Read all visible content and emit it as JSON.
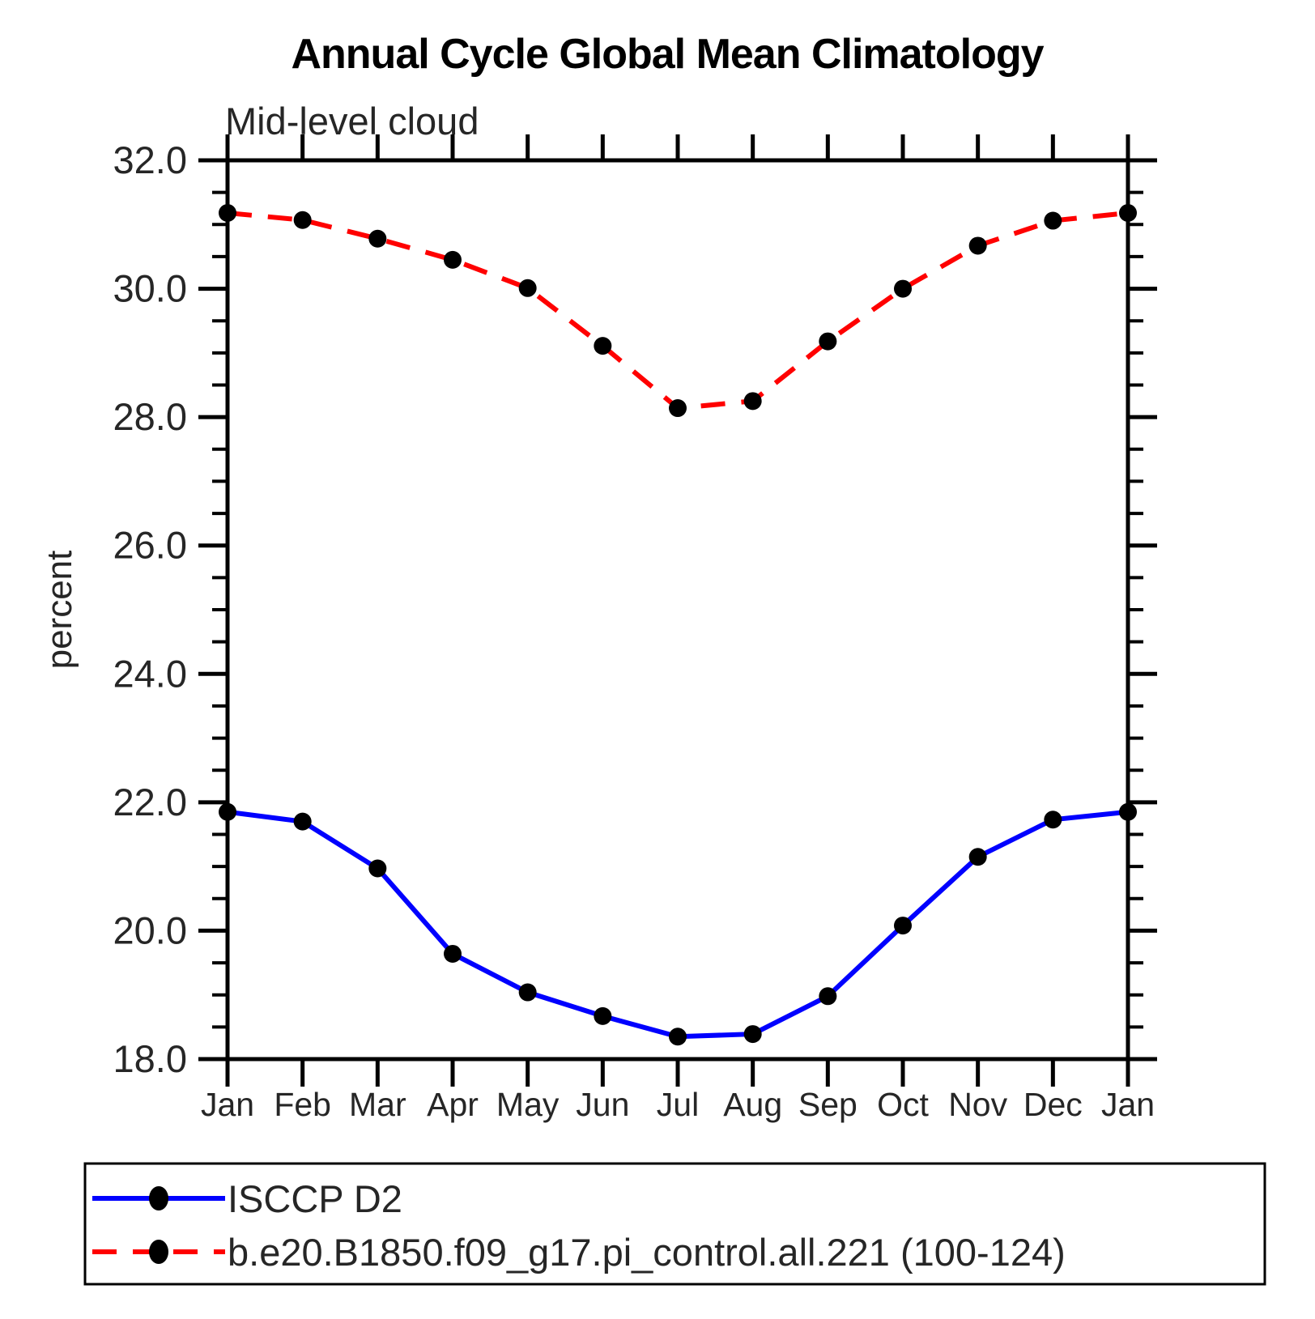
{
  "chart_data": {
    "type": "line",
    "title": "Annual Cycle Global Mean Climatology",
    "subtitle": "Mid-level cloud",
    "ylabel": "percent",
    "xlabel": "",
    "categories": [
      "Jan",
      "Feb",
      "Mar",
      "Apr",
      "May",
      "Jun",
      "Jul",
      "Aug",
      "Sep",
      "Oct",
      "Nov",
      "Dec",
      "Jan"
    ],
    "ylim": [
      18.0,
      32.0
    ],
    "ytick_step": 2.0,
    "ytick_minor_step": 0.5,
    "ytick_labels": [
      "18.0",
      "20.0",
      "22.0",
      "24.0",
      "26.0",
      "28.0",
      "30.0",
      "32.0"
    ],
    "grid": false,
    "legend_position": "bottom",
    "marker": "filled-circle",
    "marker_color": "#000000",
    "series": [
      {
        "name": "ISCCP D2",
        "color": "#0000ff",
        "line_style": "solid",
        "values": [
          21.85,
          21.7,
          20.97,
          19.64,
          19.04,
          18.67,
          18.35,
          18.39,
          18.98,
          20.08,
          21.15,
          21.73,
          21.85
        ]
      },
      {
        "name": "b.e20.B1850.f09_g17.pi_control.all.221 (100-124)",
        "color": "#ff0000",
        "line_style": "dashed",
        "values": [
          31.18,
          31.07,
          30.78,
          30.45,
          30.01,
          29.11,
          28.14,
          28.25,
          29.18,
          30.0,
          30.67,
          31.06,
          31.18
        ]
      }
    ]
  },
  "colors": {
    "axis": "#000000",
    "obs_line": "#0000ff",
    "model_line": "#ff0000",
    "marker": "#000000",
    "background": "#ffffff"
  }
}
